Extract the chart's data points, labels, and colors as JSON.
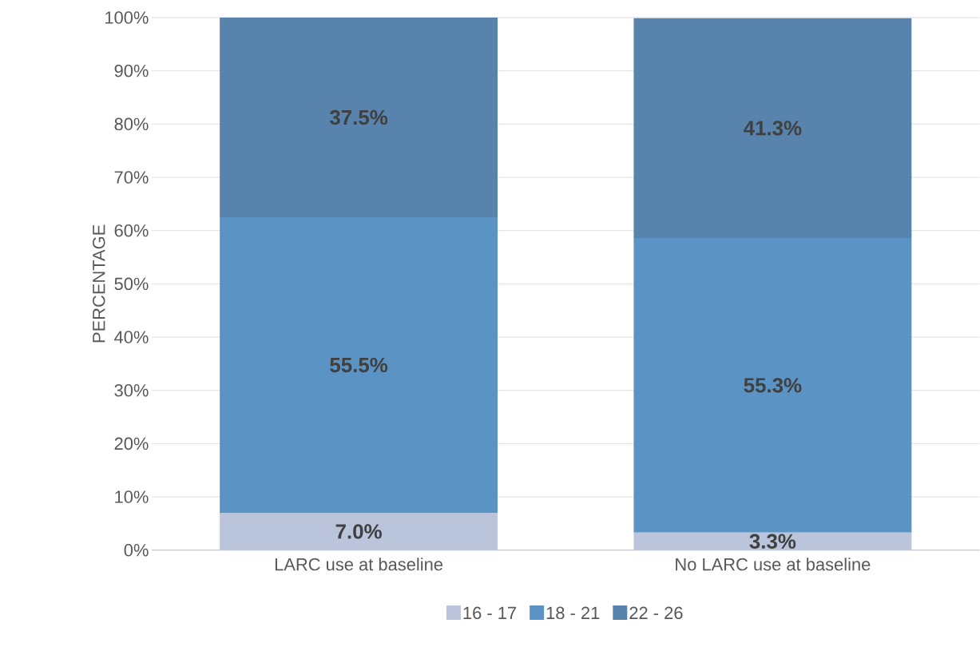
{
  "chart_data": {
    "type": "bar",
    "stacked": true,
    "ylabel": "PERCENTAGE",
    "categories": [
      "LARC use at baseline",
      "No LARC use at baseline"
    ],
    "series": [
      {
        "name": "16 - 17",
        "color": "#bac5dc",
        "values": [
          7.0,
          3.3
        ],
        "value_labels": [
          "7.0%",
          "3.3%"
        ]
      },
      {
        "name": "18 - 21",
        "color": "#5b93c5",
        "values": [
          55.5,
          55.3
        ],
        "value_labels": [
          "55.5%",
          "55.3%"
        ]
      },
      {
        "name": "22 - 26",
        "color": "#5783ad",
        "values": [
          37.5,
          41.3
        ],
        "value_labels": [
          "37.5%",
          "41.3%"
        ]
      }
    ],
    "ylim": [
      0,
      100
    ],
    "yticks": [
      {
        "value": 0,
        "label": "0%"
      },
      {
        "value": 10,
        "label": "10%"
      },
      {
        "value": 20,
        "label": "20%"
      },
      {
        "value": 30,
        "label": "30%"
      },
      {
        "value": 40,
        "label": "40%"
      },
      {
        "value": 50,
        "label": "50%"
      },
      {
        "value": 60,
        "label": "60%"
      },
      {
        "value": 70,
        "label": "70%"
      },
      {
        "value": 80,
        "label": "80%"
      },
      {
        "value": 90,
        "label": "90%"
      },
      {
        "value": 100,
        "label": "100%"
      }
    ],
    "grid": "y",
    "legend": "bottom"
  }
}
